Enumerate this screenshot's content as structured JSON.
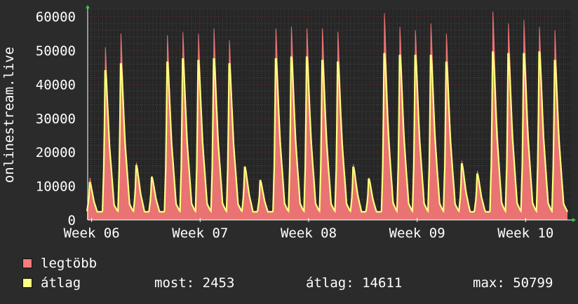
{
  "colors": {
    "background": "#2b2b2b",
    "plot_background": "#262626",
    "grid_major": "#5a2a2a",
    "grid_minor": "#454545",
    "axis": "#ffffff",
    "max_series": "#ff7b7b",
    "avg_series": "#ffff80",
    "arrow": "#2ecc40"
  },
  "chart_data": {
    "type": "area",
    "ylabel": "onlinestream.live",
    "ylim": [
      0,
      62000
    ],
    "y_ticks": [
      0,
      10000,
      20000,
      30000,
      40000,
      50000,
      60000
    ],
    "y_tick_labels": [
      "0",
      "10000",
      "20000",
      "30000",
      "40000",
      "50000",
      "60000"
    ],
    "x_ticks": [
      "Week 06",
      "Week 07",
      "Week 08",
      "Week 09",
      "Week 10"
    ],
    "days_per_week": 7,
    "grid": true,
    "series": [
      {
        "name": "legtöbb",
        "color": "#ff7b7b",
        "daily_peaks": [
          12500,
          51000,
          55000,
          17000,
          13000,
          54500,
          55500,
          55000,
          56500,
          53000,
          16000,
          12000,
          56500,
          57000,
          56500,
          56500,
          55500,
          16500,
          12500,
          61000,
          57000,
          56000,
          58000,
          55000,
          17500,
          14500,
          61500,
          58000,
          59000,
          57000,
          56000
        ]
      },
      {
        "name": "átlag",
        "color": "#ffff80",
        "daily_peaks": [
          11000,
          44000,
          46000,
          16000,
          12500,
          46500,
          47500,
          47000,
          47500,
          46000,
          15500,
          11500,
          47500,
          48000,
          48000,
          47000,
          46500,
          15500,
          12000,
          49000,
          48500,
          48500,
          48500,
          46500,
          16500,
          13500,
          49500,
          49000,
          49000,
          49500,
          47000
        ]
      }
    ]
  },
  "legend": {
    "max_label": "legtöbb",
    "avg_label": "átlag",
    "now_text": "most: 2453",
    "avg_text": "átlag: 14611",
    "max_text": "max: 50799"
  }
}
